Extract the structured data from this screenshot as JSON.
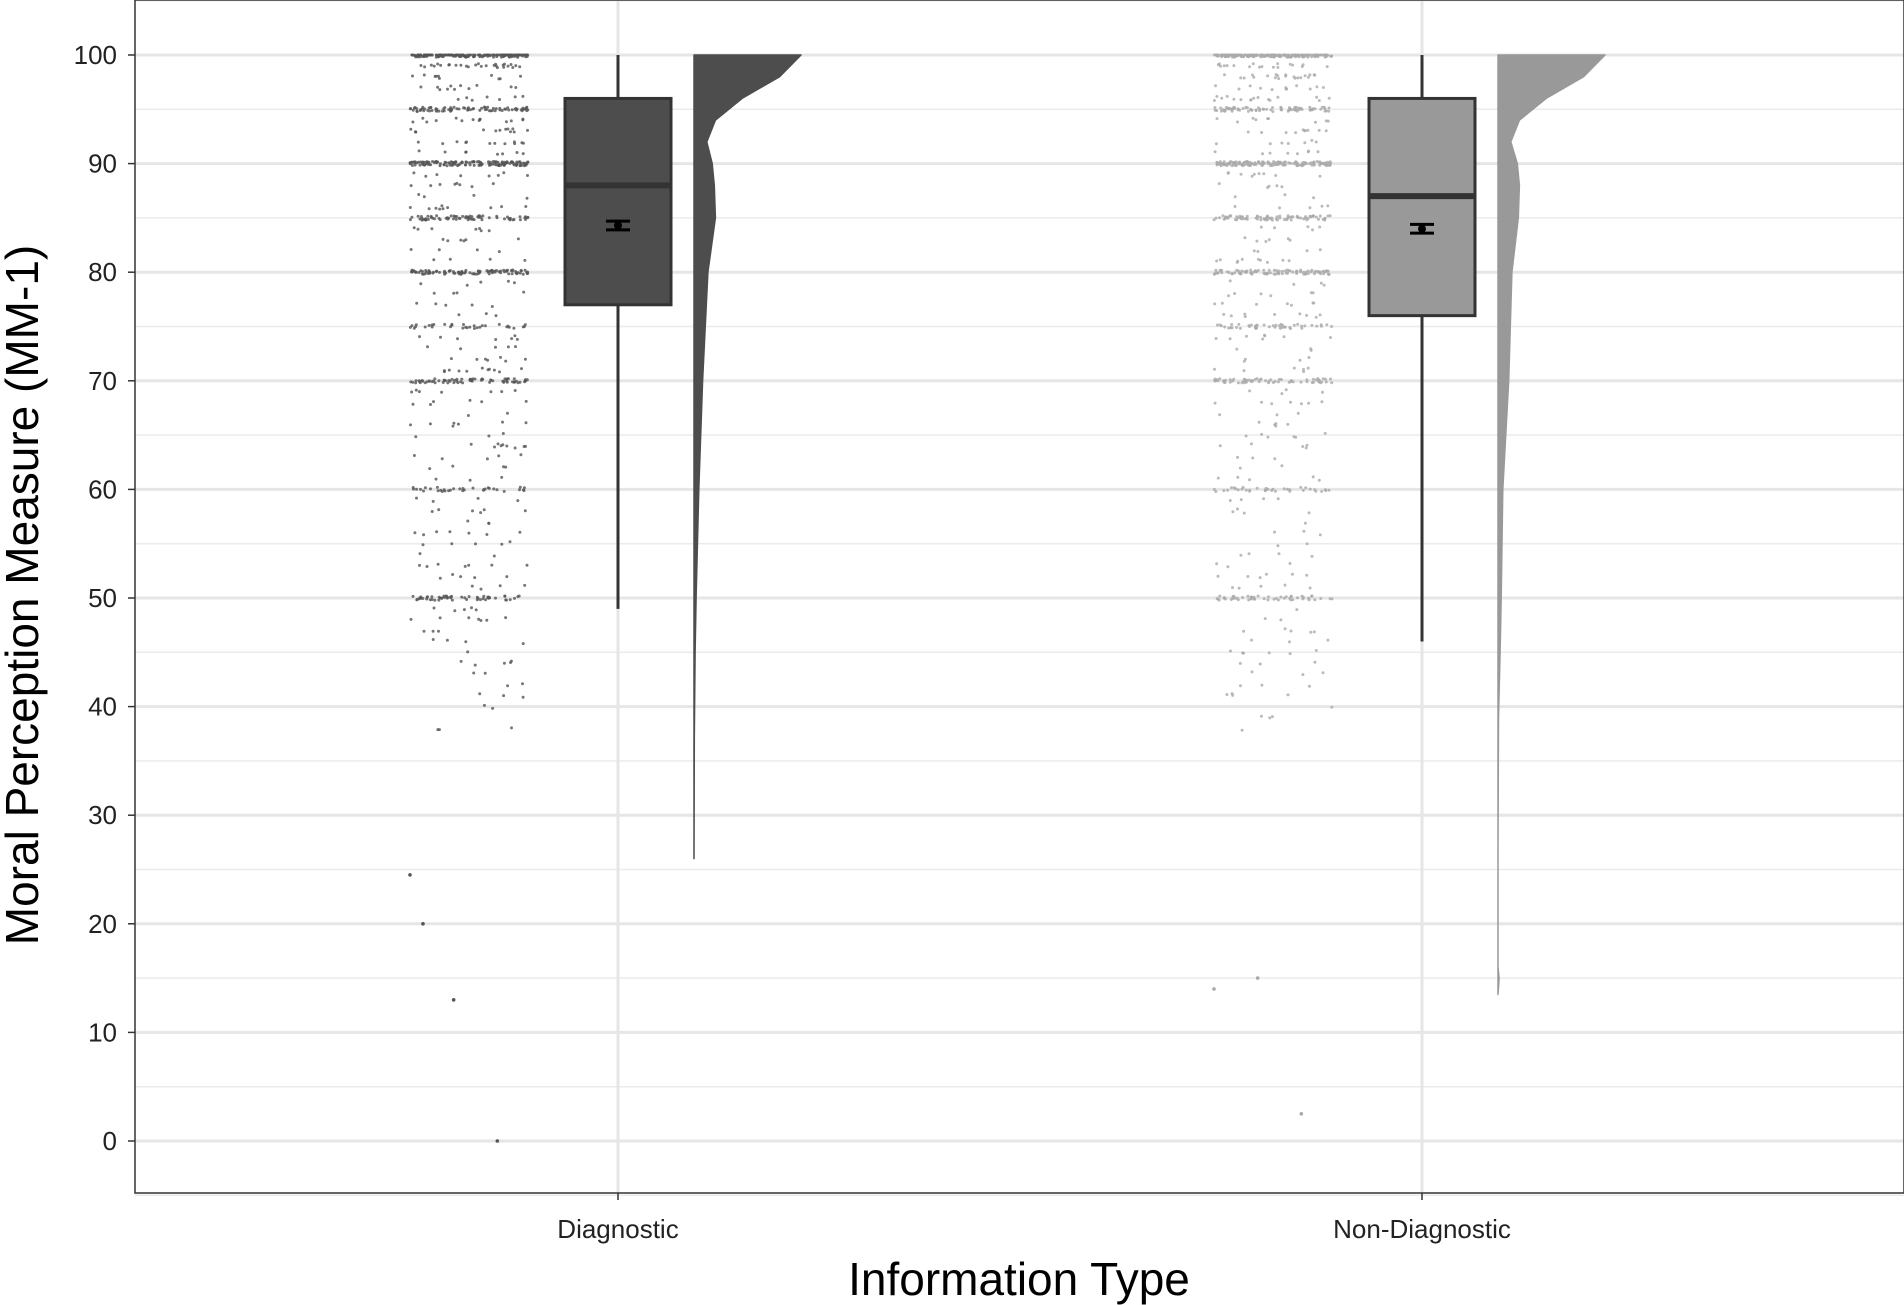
{
  "chart_data": {
    "type": "raincloud",
    "title": "",
    "xlabel": "Information Type",
    "ylabel": "Moral Perception Measure (MM-1)",
    "ylim": [
      -5,
      105
    ],
    "yticks": [
      0,
      10,
      20,
      30,
      40,
      50,
      60,
      70,
      80,
      90,
      100
    ],
    "categories": [
      "Diagnostic",
      "Non-Diagnostic"
    ],
    "grid": true,
    "legend": "none",
    "series": [
      {
        "category": "Diagnostic",
        "color": "#4d4d4d",
        "point_color": "#555555",
        "box": {
          "min": 49,
          "q1": 77,
          "median": 88,
          "q3": 96,
          "max": 100
        },
        "mean": 84.3,
        "mean_ci": [
          83.9,
          84.7
        ],
        "density": [
          [
            26,
            0.0
          ],
          [
            37,
            0.003
          ],
          [
            45,
            0.01
          ],
          [
            50,
            0.02
          ],
          [
            60,
            0.045
          ],
          [
            70,
            0.08
          ],
          [
            80,
            0.13
          ],
          [
            85,
            0.2
          ],
          [
            88,
            0.19
          ],
          [
            90,
            0.17
          ],
          [
            92,
            0.12
          ],
          [
            94,
            0.2
          ],
          [
            96,
            0.45
          ],
          [
            98,
            0.8
          ],
          [
            100,
            1.0
          ]
        ],
        "outliers": [
          24.5,
          13,
          0,
          20
        ]
      },
      {
        "category": "Non-Diagnostic",
        "color": "#999999",
        "point_color": "#aaaaaa",
        "box": {
          "min": 46,
          "q1": 76,
          "median": 87,
          "q3": 96,
          "max": 100
        },
        "mean": 84.0,
        "mean_ci": [
          83.6,
          84.4
        ],
        "density": [
          [
            13.5,
            0.0
          ],
          [
            15,
            0.01
          ],
          [
            16,
            0.0
          ],
          [
            27,
            0.0
          ],
          [
            39,
            0.005
          ],
          [
            45,
            0.02
          ],
          [
            50,
            0.03
          ],
          [
            60,
            0.045
          ],
          [
            70,
            0.1
          ],
          [
            80,
            0.13
          ],
          [
            85,
            0.19
          ],
          [
            88,
            0.2
          ],
          [
            90,
            0.18
          ],
          [
            92,
            0.12
          ],
          [
            94,
            0.2
          ],
          [
            96,
            0.45
          ],
          [
            98,
            0.8
          ],
          [
            100,
            1.0
          ]
        ],
        "outliers": [
          14,
          15,
          2.5
        ]
      }
    ]
  }
}
